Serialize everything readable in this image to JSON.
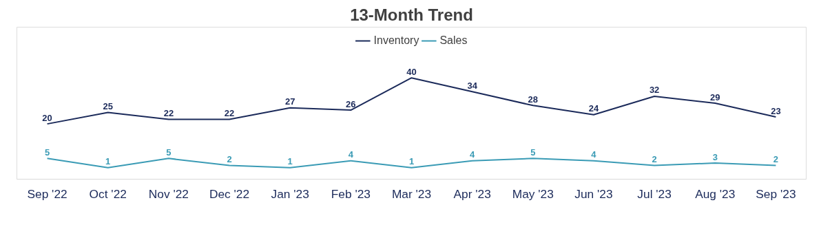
{
  "chart_data": {
    "type": "line",
    "title": "13-Month Trend",
    "categories": [
      "Sep '22",
      "Oct '22",
      "Nov '22",
      "Dec '22",
      "Jan '23",
      "Feb '23",
      "Mar '23",
      "Apr '23",
      "May '23",
      "Jun '23",
      "Jul '23",
      "Aug '23",
      "Sep '23"
    ],
    "series": [
      {
        "name": "Inventory",
        "color": "#1b2a5a",
        "values": [
          20,
          25,
          22,
          22,
          27,
          26,
          40,
          34,
          28,
          24,
          32,
          29,
          23
        ]
      },
      {
        "name": "Sales",
        "color": "#3a9bb5",
        "values": [
          5,
          1,
          5,
          2,
          1,
          4,
          1,
          4,
          5,
          4,
          2,
          3,
          2
        ]
      }
    ],
    "ylim": [
      -4,
      62
    ],
    "tick_labels": "x",
    "data_labels": true,
    "legend": "top",
    "grid": false,
    "line_style": "solid"
  }
}
